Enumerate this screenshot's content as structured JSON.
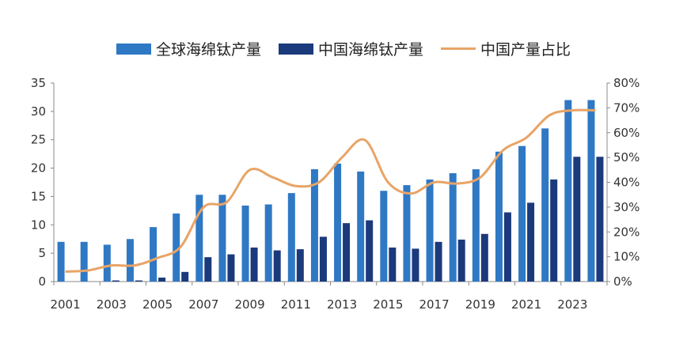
{
  "chart_data": {
    "type": "bar",
    "title": "",
    "categories": [
      "2001",
      "2002",
      "2003",
      "2004",
      "2005",
      "2006",
      "2007",
      "2008",
      "2009",
      "2010",
      "2011",
      "2012",
      "2013",
      "2014",
      "2015",
      "2016",
      "2017",
      "2018",
      "2019",
      "2020",
      "2021",
      "2022",
      "2023",
      "2024"
    ],
    "x_tick_labels": [
      "2001",
      "2003",
      "2005",
      "2007",
      "2009",
      "2011",
      "2013",
      "2015",
      "2017",
      "2019",
      "2021",
      "2023"
    ],
    "series": [
      {
        "name": "全球海绵钛产量",
        "type": "bar",
        "axis": "left",
        "color": "#2f78c4",
        "values": [
          7,
          7,
          6.5,
          7.5,
          9.6,
          12,
          15.3,
          15.3,
          13.4,
          13.6,
          15.6,
          19.8,
          20.8,
          19.4,
          16,
          17,
          18,
          19.1,
          19.8,
          22.9,
          23.9,
          27,
          32,
          32
        ]
      },
      {
        "name": "中国海绵钛产量",
        "type": "bar",
        "axis": "left",
        "color": "#1b3a7c",
        "values": [
          0,
          0,
          0.2,
          0.2,
          0.7,
          1.7,
          4.3,
          4.8,
          6,
          5.5,
          5.7,
          7.9,
          10.3,
          10.8,
          6,
          5.8,
          7,
          7.4,
          8.4,
          12.2,
          13.9,
          18,
          22,
          22
        ]
      },
      {
        "name": "中国产量占比",
        "type": "line",
        "axis": "right",
        "color": "#e8a466",
        "values": [
          4,
          4.5,
          6.5,
          6.5,
          9.5,
          14,
          30,
          32,
          45,
          42,
          38.5,
          40,
          50,
          57,
          40,
          35.5,
          40,
          39.5,
          42,
          53,
          58,
          67,
          69,
          69
        ]
      }
    ],
    "y_left": {
      "range": [
        0,
        35
      ],
      "ticks": [
        "0",
        "5",
        "10",
        "15",
        "20",
        "25",
        "30",
        "35"
      ]
    },
    "y_right": {
      "range": [
        0,
        80
      ],
      "ticks": [
        "0%",
        "10%",
        "20%",
        "30%",
        "40%",
        "50%",
        "60%",
        "70%",
        "80%"
      ]
    },
    "grid": false,
    "legend": "top"
  }
}
